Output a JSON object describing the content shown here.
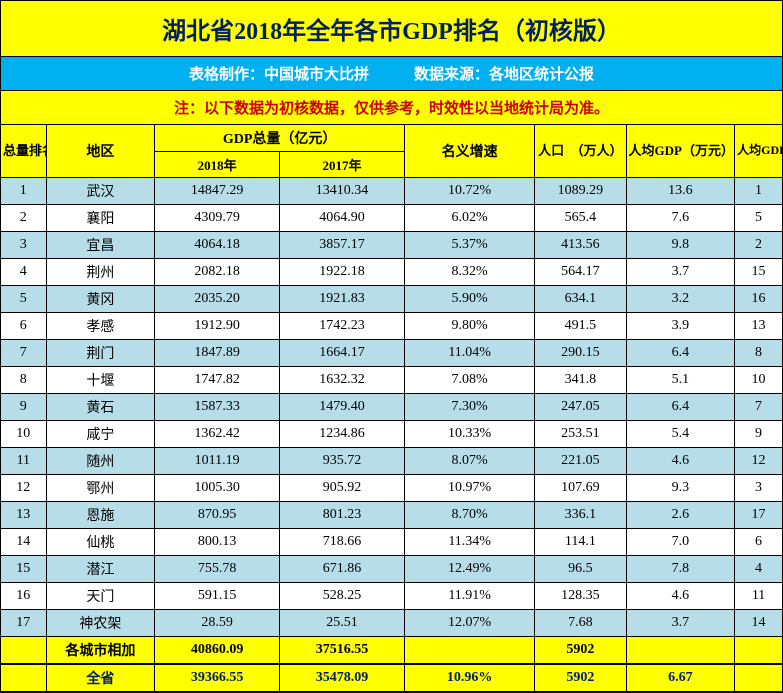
{
  "title": "湖北省2018年全年各市GDP排名（初核版）",
  "subtitle": "表格制作：中国城市大比拼　　　数据来源：各地区统计公报",
  "note": "注：以下数据为初核数据，仅供参考，时效性以当地统计局为准。",
  "headers": {
    "rank_total": "总量排名",
    "region": "地区",
    "gdp_total": "GDP总量（亿元）",
    "gdp_2018": "2018年",
    "gdp_2017": "2017年",
    "growth": "名义增速",
    "population": "人口　（万人）",
    "per_capita": "人均GDP（万元）",
    "per_capita_rank": "人均GDP排名"
  },
  "rows": [
    {
      "rank": "1",
      "region": "武汉",
      "g18": "14847.29",
      "g17": "13410.34",
      "growth": "10.72%",
      "pop": "1089.29",
      "pc": "13.6",
      "pcr": "1"
    },
    {
      "rank": "2",
      "region": "襄阳",
      "g18": "4309.79",
      "g17": "4064.90",
      "growth": "6.02%",
      "pop": "565.4",
      "pc": "7.6",
      "pcr": "5"
    },
    {
      "rank": "3",
      "region": "宜昌",
      "g18": "4064.18",
      "g17": "3857.17",
      "growth": "5.37%",
      "pop": "413.56",
      "pc": "9.8",
      "pcr": "2"
    },
    {
      "rank": "4",
      "region": "荆州",
      "g18": "2082.18",
      "g17": "1922.18",
      "growth": "8.32%",
      "pop": "564.17",
      "pc": "3.7",
      "pcr": "15"
    },
    {
      "rank": "5",
      "region": "黄冈",
      "g18": "2035.20",
      "g17": "1921.83",
      "growth": "5.90%",
      "pop": "634.1",
      "pc": "3.2",
      "pcr": "16"
    },
    {
      "rank": "6",
      "region": "孝感",
      "g18": "1912.90",
      "g17": "1742.23",
      "growth": "9.80%",
      "pop": "491.5",
      "pc": "3.9",
      "pcr": "13"
    },
    {
      "rank": "7",
      "region": "荆门",
      "g18": "1847.89",
      "g17": "1664.17",
      "growth": "11.04%",
      "pop": "290.15",
      "pc": "6.4",
      "pcr": "8"
    },
    {
      "rank": "8",
      "region": "十堰",
      "g18": "1747.82",
      "g17": "1632.32",
      "growth": "7.08%",
      "pop": "341.8",
      "pc": "5.1",
      "pcr": "10"
    },
    {
      "rank": "9",
      "region": "黄石",
      "g18": "1587.33",
      "g17": "1479.40",
      "growth": "7.30%",
      "pop": "247.05",
      "pc": "6.4",
      "pcr": "7"
    },
    {
      "rank": "10",
      "region": "咸宁",
      "g18": "1362.42",
      "g17": "1234.86",
      "growth": "10.33%",
      "pop": "253.51",
      "pc": "5.4",
      "pcr": "9"
    },
    {
      "rank": "11",
      "region": "随州",
      "g18": "1011.19",
      "g17": "935.72",
      "growth": "8.07%",
      "pop": "221.05",
      "pc": "4.6",
      "pcr": "12"
    },
    {
      "rank": "12",
      "region": "鄂州",
      "g18": "1005.30",
      "g17": "905.92",
      "growth": "10.97%",
      "pop": "107.69",
      "pc": "9.3",
      "pcr": "3"
    },
    {
      "rank": "13",
      "region": "恩施",
      "g18": "870.95",
      "g17": "801.23",
      "growth": "8.70%",
      "pop": "336.1",
      "pc": "2.6",
      "pcr": "17"
    },
    {
      "rank": "14",
      "region": "仙桃",
      "g18": "800.13",
      "g17": "718.66",
      "growth": "11.34%",
      "pop": "114.1",
      "pc": "7.0",
      "pcr": "6"
    },
    {
      "rank": "15",
      "region": "潜江",
      "g18": "755.78",
      "g17": "671.86",
      "growth": "12.49%",
      "pop": "96.5",
      "pc": "7.8",
      "pcr": "4"
    },
    {
      "rank": "16",
      "region": "天门",
      "g18": "591.15",
      "g17": "528.25",
      "growth": "11.91%",
      "pop": "128.35",
      "pc": "4.6",
      "pcr": "11"
    },
    {
      "rank": "17",
      "region": "神农架",
      "g18": "28.59",
      "g17": "25.51",
      "growth": "12.07%",
      "pop": "7.68",
      "pc": "3.7",
      "pcr": "14"
    }
  ],
  "sum_row": {
    "label": "各城市相加",
    "g18": "40860.09",
    "g17": "37516.55",
    "growth": "",
    "pop": "5902",
    "pc": "",
    "pcr": ""
  },
  "total_row": {
    "label": "全省",
    "g18": "39366.55",
    "g17": "35478.09",
    "growth": "10.96%",
    "pop": "5902",
    "pc": "6.67",
    "pcr": ""
  }
}
